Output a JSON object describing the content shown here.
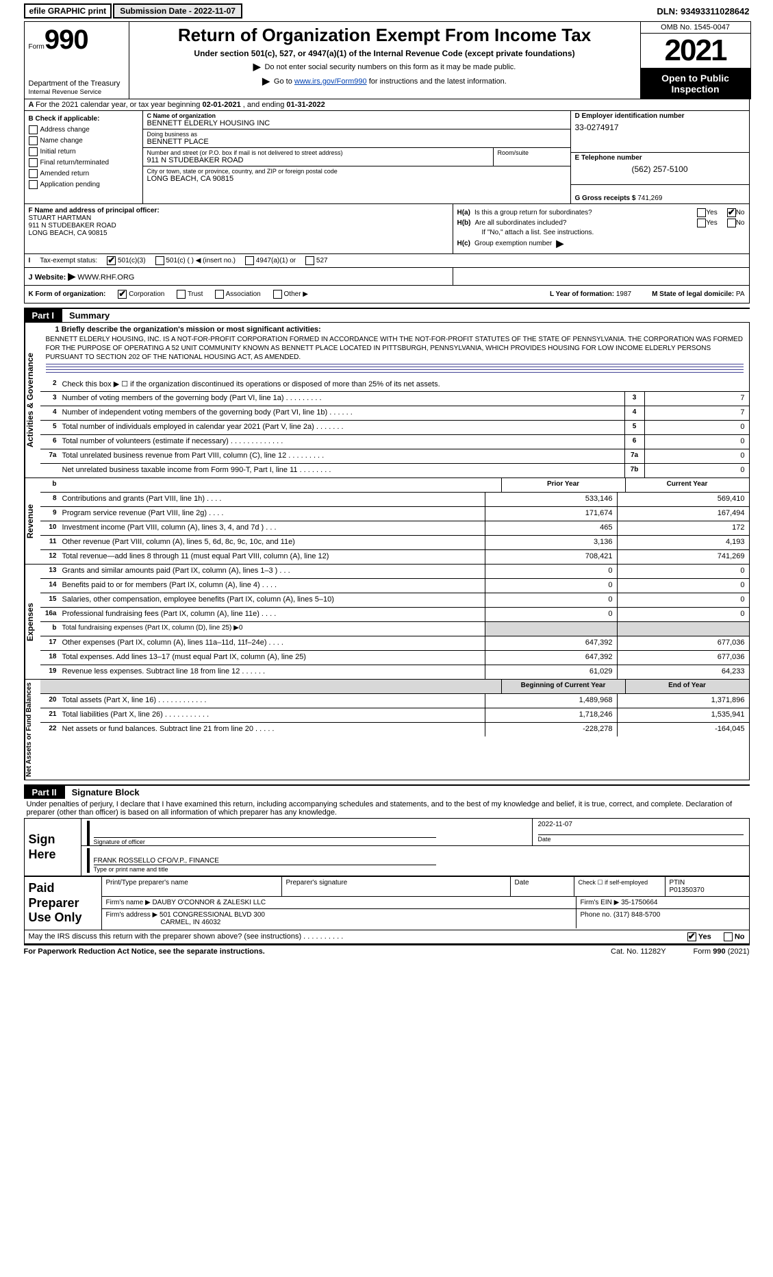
{
  "topbar": {
    "efile_prefix": "efile",
    "efile_rest": " GRAPHIC print",
    "submission_label": "Submission Date - 2022-11-07",
    "dln": "DLN: 93493311028642"
  },
  "header": {
    "form_label": "Form",
    "form_number": "990",
    "dept": "Department of the Treasury",
    "irs": "Internal Revenue Service",
    "main_title": "Return of Organization Exempt From Income Tax",
    "sub1": "Under section 501(c), 527, or 4947(a)(1) of the Internal Revenue Code (except private foundations)",
    "sub2": "Do not enter social security numbers on this form as it may be made public.",
    "sub3_pre": "Go to ",
    "sub3_link": "www.irs.gov/Form990",
    "sub3_post": " for instructions and the latest information.",
    "omb": "OMB No. 1545-0047",
    "year": "2021",
    "open_public": "Open to Public Inspection"
  },
  "rowA": {
    "prefix": "A ",
    "text": "For the 2021 calendar year, or tax year beginning ",
    "begin": "02-01-2021",
    "mid": " , and ending ",
    "end": "01-31-2022"
  },
  "colB": {
    "header": "B Check if applicable:",
    "items": [
      "Address change",
      "Name change",
      "Initial return",
      "Final return/terminated",
      "Amended return",
      "Application pending"
    ]
  },
  "colC": {
    "name_label": "C Name of organization",
    "name": "BENNETT ELDERLY HOUSING INC",
    "dba_label": "Doing business as",
    "dba": "BENNETT PLACE",
    "street_label": "Number and street (or P.O. box if mail is not delivered to street address)",
    "room_label": "Room/suite",
    "street": "911 N STUDEBAKER ROAD",
    "city_label": "City or town, state or province, country, and ZIP or foreign postal code",
    "city": "LONG BEACH, CA  90815"
  },
  "colD": {
    "ein_label": "D Employer identification number",
    "ein": "33-0274917",
    "tel_label": "E Telephone number",
    "tel": "(562) 257-5100",
    "gross_label": "G Gross receipts $",
    "gross": "741,269"
  },
  "rowF": {
    "label": "F Name and address of principal officer:",
    "name": "STUART HARTMAN",
    "line2": "911 N STUDEBAKER ROAD",
    "line3": "LONG BEACH, CA  90815"
  },
  "rowH": {
    "ha_label": "H(a)",
    "ha_text": "Is this a group return for subordinates?",
    "hb_label": "H(b)",
    "hb_text": "Are all subordinates included?",
    "hb_note": "If \"No,\" attach a list. See instructions.",
    "hc_label": "H(c)",
    "hc_text": "Group exemption number",
    "yes": "Yes",
    "no": "No"
  },
  "rowI": {
    "label": "I",
    "text": "Tax-exempt status:",
    "o1": "501(c)(3)",
    "o2_pre": "501(c) (",
    "o2_post": ")",
    "o2_hint": "(insert no.)",
    "o3": "4947(a)(1) or",
    "o4": "527"
  },
  "rowJ": {
    "label": "J",
    "text": "Website:",
    "url": "WWW.RHF.ORG"
  },
  "rowK": {
    "label": "K Form of organization:",
    "o1": "Corporation",
    "o2": "Trust",
    "o3": "Association",
    "o4": "Other",
    "L_label": "L Year of formation:",
    "L_val": "1987",
    "M_label": "M State of legal domicile:",
    "M_val": "PA"
  },
  "parts": {
    "p1_label": "Part I",
    "p1_title": "Summary",
    "p2_label": "Part II",
    "p2_title": "Signature Block"
  },
  "sides": {
    "gov": "Activities & Governance",
    "rev": "Revenue",
    "exp": "Expenses",
    "net": "Net Assets or Fund Balances"
  },
  "mission": {
    "q1_label": "1",
    "q1_text": "Briefly describe the organization's mission or most significant activities:",
    "text": "BENNETT ELDERLY HOUSING, INC. IS A NOT-FOR-PROFIT CORPORATION FORMED IN ACCORDANCE WITH THE NOT-FOR-PROFIT STATUTES OF THE STATE OF PENNSYLVANIA. THE CORPORATION WAS FORMED FOR THE PURPOSE OF OPERATING A 52 UNIT COMMUNITY KNOWN AS BENNETT PLACE LOCATED IN PITTSBURGH, PENNSYLVANIA, WHICH PROVIDES HOUSING FOR LOW INCOME ELDERLY PERSONS PURSUANT TO SECTION 202 OF THE NATIONAL HOUSING ACT, AS AMENDED."
  },
  "gov_rows": [
    {
      "n": "2",
      "t": "Check this box ▶ ☐ if the organization discontinued its operations or disposed of more than 25% of its net assets."
    },
    {
      "n": "3",
      "t": "Number of voting members of the governing body (Part VI, line 1a)    .    .    .    .    .    .    .    .    .",
      "b": "3",
      "v": "7"
    },
    {
      "n": "4",
      "t": "Number of independent voting members of the governing body (Part VI, line 1b)   .    .    .    .    .    .",
      "b": "4",
      "v": "7"
    },
    {
      "n": "5",
      "t": "Total number of individuals employed in calendar year 2021 (Part V, line 2a)    .    .    .    .    .    .    .",
      "b": "5",
      "v": "0"
    },
    {
      "n": "6",
      "t": "Total number of volunteers (estimate if necessary)    .    .    .    .    .    .    .    .    .    .    .    .    .",
      "b": "6",
      "v": "0"
    },
    {
      "n": "7a",
      "t": "Total unrelated business revenue from Part VIII, column (C), line 12    .    .    .    .    .    .    .    .    .",
      "b": "7a",
      "v": "0"
    },
    {
      "n": "",
      "t": "Net unrelated business taxable income from Form 990-T, Part I, line 11    .    .    .    .    .    .    .    .",
      "b": "7b",
      "v": "0"
    }
  ],
  "two_hdrs": {
    "rev": {
      "a": "Prior Year",
      "b": "Current Year"
    },
    "net": {
      "a": "Beginning of Current Year",
      "b": "End of Year"
    }
  },
  "rev_rows": [
    {
      "n": "8",
      "t": "Contributions and grants (Part VIII, line 1h)    .    .    .    .",
      "a": "533,146",
      "b": "569,410"
    },
    {
      "n": "9",
      "t": "Program service revenue (Part VIII, line 2g)    .    .    .    .",
      "a": "171,674",
      "b": "167,494"
    },
    {
      "n": "10",
      "t": "Investment income (Part VIII, column (A), lines 3, 4, and 7d )    .    .    .",
      "a": "465",
      "b": "172"
    },
    {
      "n": "11",
      "t": "Other revenue (Part VIII, column (A), lines 5, 6d, 8c, 9c, 10c, and 11e)",
      "a": "3,136",
      "b": "4,193"
    },
    {
      "n": "12",
      "t": "Total revenue—add lines 8 through 11 (must equal Part VIII, column (A), line 12)",
      "a": "708,421",
      "b": "741,269"
    }
  ],
  "exp_rows": [
    {
      "n": "13",
      "t": "Grants and similar amounts paid (Part IX, column (A), lines 1–3 )    .    .    .",
      "a": "0",
      "b": "0"
    },
    {
      "n": "14",
      "t": "Benefits paid to or for members (Part IX, column (A), line 4)    .    .    .    .",
      "a": "0",
      "b": "0"
    },
    {
      "n": "15",
      "t": "Salaries, other compensation, employee benefits (Part IX, column (A), lines 5–10)",
      "a": "0",
      "b": "0"
    },
    {
      "n": "16a",
      "t": "Professional fundraising fees (Part IX, column (A), line 11e)    .    .    .    .",
      "a": "0",
      "b": "0"
    },
    {
      "n": "b",
      "t": "Total fundraising expenses (Part IX, column (D), line 25) ▶0",
      "shade": true
    },
    {
      "n": "17",
      "t": "Other expenses (Part IX, column (A), lines 11a–11d, 11f–24e)    .    .    .    .",
      "a": "647,392",
      "b": "677,036"
    },
    {
      "n": "18",
      "t": "Total expenses. Add lines 13–17 (must equal Part IX, column (A), line 25)",
      "a": "647,392",
      "b": "677,036"
    },
    {
      "n": "19",
      "t": "Revenue less expenses. Subtract line 18 from line 12    .    .    .    .    .    .",
      "a": "61,029",
      "b": "64,233"
    }
  ],
  "net_rows": [
    {
      "n": "20",
      "t": "Total assets (Part X, line 16)    .    .    .    .    .    .    .    .    .    .    .    .",
      "a": "1,489,968",
      "b": "1,371,896"
    },
    {
      "n": "21",
      "t": "Total liabilities (Part X, line 26)    .    .    .    .    .    .    .    .    .    .    .",
      "a": "1,718,246",
      "b": "1,535,941"
    },
    {
      "n": "22",
      "t": "Net assets or fund balances. Subtract line 21 from line 20    .    .    .    .    .",
      "a": "-228,278",
      "b": "-164,045"
    }
  ],
  "sig": {
    "penalty": "Under penalties of perjury, I declare that I have examined this return, including accompanying schedules and statements, and to the best of my knowledge and belief, it is true, correct, and complete. Declaration of preparer (other than officer) is based on all information of which preparer has any knowledge.",
    "sign_here": "Sign Here",
    "sig_officer": "Signature of officer",
    "date_label": "Date",
    "date_val": "2022-11-07",
    "name_title_line": "FRANK ROSSELLO  CFO/V.P., FINANCE",
    "name_title_label": "Type or print name and title"
  },
  "preparer": {
    "label": "Paid Preparer Use Only",
    "h_name": "Print/Type preparer's name",
    "h_sig": "Preparer's signature",
    "h_date": "Date",
    "h_check": "Check ☐ if self-employed",
    "h_ptin": "PTIN",
    "ptin": "P01350370",
    "firm_name_label": "Firm's name    ▶",
    "firm_name": "DAUBY O'CONNOR & ZALESKI LLC",
    "firm_ein_label": "Firm's EIN ▶",
    "firm_ein": "35-1750664",
    "firm_addr_label": "Firm's address ▶",
    "firm_addr_1": "501 CONGRESSIONAL BLVD 300",
    "firm_addr_2": "CARMEL, IN  46032",
    "phone_label": "Phone no.",
    "phone": "(317) 848-5700"
  },
  "may_irs": {
    "text": "May the IRS discuss this return with the preparer shown above? (see instructions)    .    .    .    .    .    .    .    .    .    .",
    "yes": "Yes",
    "no": "No"
  },
  "footer": {
    "left": "For Paperwork Reduction Act Notice, see the separate instructions.",
    "cat": "Cat. No. 11282Y",
    "right_pre": "Form ",
    "right_num": "990",
    "right_post": " (2021)"
  }
}
